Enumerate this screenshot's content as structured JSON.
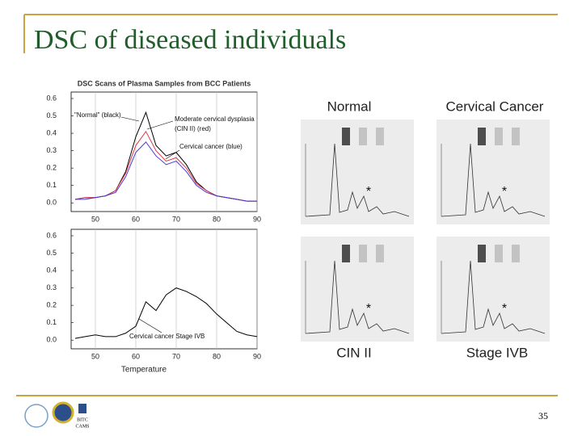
{
  "slide": {
    "title": "DSC of diseased individuals",
    "page_number": "35",
    "logo_text": [
      "BITC",
      "CAMS"
    ]
  },
  "chart_data": [
    {
      "type": "line",
      "title": "DSC Scans of Plasma Samples from BCC Patients",
      "x": [
        45,
        47.5,
        50,
        52.5,
        55,
        57.5,
        60,
        62.5,
        65,
        67.5,
        70,
        72.5,
        75,
        77.5,
        80,
        82.5,
        85,
        87.5,
        90
      ],
      "series": [
        {
          "color": "#000000",
          "values": [
            0.02,
            0.03,
            0.03,
            0.04,
            0.07,
            0.18,
            0.38,
            0.52,
            0.33,
            0.27,
            0.29,
            0.22,
            0.12,
            0.07,
            0.04,
            0.03,
            0.02,
            0.01,
            0.01
          ]
        },
        {
          "color": "#e03a4a",
          "values": [
            0.02,
            0.03,
            0.03,
            0.04,
            0.07,
            0.17,
            0.33,
            0.41,
            0.3,
            0.24,
            0.26,
            0.2,
            0.11,
            0.07,
            0.04,
            0.03,
            0.02,
            0.01,
            0.01
          ]
        },
        {
          "color": "#4a3ad0",
          "values": [
            0.02,
            0.02,
            0.03,
            0.04,
            0.06,
            0.15,
            0.29,
            0.35,
            0.27,
            0.22,
            0.24,
            0.18,
            0.1,
            0.06,
            0.04,
            0.03,
            0.02,
            0.01,
            0.01
          ]
        }
      ],
      "annotations": [
        "\"Normal\" (black)",
        "Moderate cervical dysplasia",
        "(CIN II) (red)",
        "Cervical cancer (blue)"
      ],
      "xlim": [
        44,
        90
      ],
      "xticks": [
        50,
        60,
        70,
        80,
        90
      ],
      "ylim": [
        -0.05,
        0.6
      ],
      "yticks": [
        {
          "value": 0,
          "label": "0.0"
        },
        0.1,
        0.2,
        0.3,
        0.4,
        0.5,
        0.6
      ],
      "grid": true
    },
    {
      "type": "line",
      "x": [
        45,
        47.5,
        50,
        52.5,
        55,
        57.5,
        60,
        62.5,
        65,
        67.5,
        70,
        72.5,
        75,
        77.5,
        80,
        82.5,
        85,
        87.5,
        90
      ],
      "series": [
        {
          "color": "#000000",
          "values": [
            0.01,
            0.02,
            0.03,
            0.02,
            0.02,
            0.04,
            0.08,
            0.22,
            0.17,
            0.26,
            0.3,
            0.28,
            0.25,
            0.21,
            0.15,
            0.1,
            0.05,
            0.03,
            0.02
          ]
        }
      ],
      "annotations": [
        "Cervical cancer Stage IVB"
      ],
      "x_label": "Temperature",
      "xlim": [
        44,
        90
      ],
      "xticks": [
        50,
        60,
        70,
        80,
        90
      ],
      "ylim": [
        -0.05,
        0.6
      ],
      "yticks": [
        {
          "value": 0,
          "label": "0.0"
        },
        0.1,
        0.2,
        0.3,
        0.4,
        0.5,
        0.6
      ],
      "grid": true
    }
  ],
  "panels": [
    {
      "label": "Normal",
      "marker": "*"
    },
    {
      "label": "Cervical Cancer",
      "marker": "*"
    },
    {
      "label": "CIN II",
      "marker": "*"
    },
    {
      "label": "Stage IVB",
      "marker": "*"
    }
  ]
}
